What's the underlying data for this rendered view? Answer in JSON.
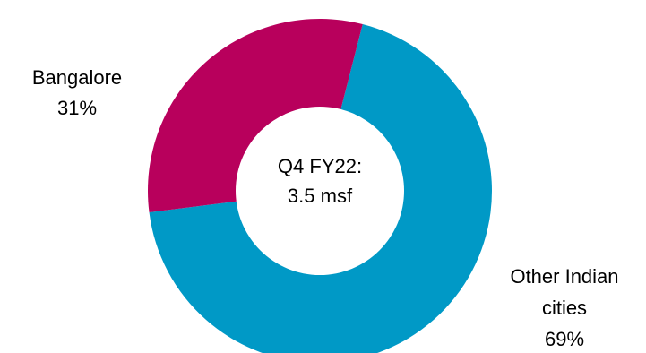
{
  "chart_data": {
    "type": "pie",
    "donut": true,
    "center_text": [
      "Q4 FY22:",
      "3.5 msf"
    ],
    "slices": [
      {
        "label_lines": [
          "Other Indian",
          "cities"
        ],
        "value_label": "69%",
        "value": 69,
        "color": "#0099c6"
      },
      {
        "label_lines": [
          "Bangalore"
        ],
        "value_label": "31%",
        "value": 31,
        "color": "#b8005c"
      }
    ],
    "start_angle_deg": 14.4,
    "direction": "clockwise"
  }
}
